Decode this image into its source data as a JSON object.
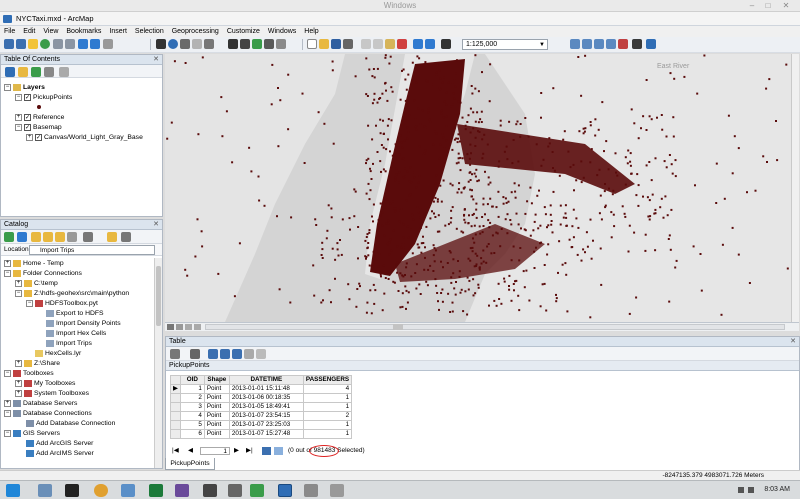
{
  "os": {
    "title": "Windows"
  },
  "app": {
    "title": "NYCTaxi.mxd - ArcMap"
  },
  "menu": [
    "File",
    "Edit",
    "View",
    "Bookmarks",
    "Insert",
    "Selection",
    "Geoprocessing",
    "Customize",
    "Windows",
    "Help"
  ],
  "toolbar": {
    "scale": "1:125,000"
  },
  "toc": {
    "title": "Table Of Contents",
    "items": [
      {
        "label": "Layers"
      },
      {
        "label": "PickupPoints"
      },
      {
        "label": "Reference"
      },
      {
        "label": "Basemap"
      },
      {
        "label": "Canvas/World_Light_Gray_Base"
      }
    ]
  },
  "catalog": {
    "title": "Catalog",
    "location_label": "Location:",
    "location_value": "Import Trips",
    "items": [
      "Home - Temp",
      "Folder Connections",
      "C:\\temp",
      "Z:\\hdfs-geohex\\src\\main\\python",
      "HDFSToolbox.pyt",
      "Export to HDFS",
      "Import Density Points",
      "Import Hex Cells",
      "Import Trips",
      "HexCells.lyr",
      "Z:\\Share",
      "Toolboxes",
      "My Toolboxes",
      "System Toolboxes",
      "Database Servers",
      "Database Connections",
      "Add Database Connection",
      "GIS Servers",
      "Add ArcGIS Server",
      "Add ArcIMS Server"
    ]
  },
  "map": {
    "label": "East River"
  },
  "table": {
    "title": "Table",
    "tab": "PickupPoints",
    "columns": [
      "OID",
      "Shape",
      "DATETIME",
      "PASSENGERS"
    ],
    "rows": [
      [
        "1",
        "Point",
        "2013-01-01 15:11:48",
        "4"
      ],
      [
        "2",
        "Point",
        "2013-01-06 00:18:35",
        "1"
      ],
      [
        "3",
        "Point",
        "2013-01-05 18:49:41",
        "1"
      ],
      [
        "4",
        "Point",
        "2013-01-07 23:54:15",
        "2"
      ],
      [
        "5",
        "Point",
        "2013-01-07 23:25:03",
        "1"
      ],
      [
        "6",
        "Point",
        "2013-01-07 15:27:48",
        "1"
      ]
    ],
    "page": "1",
    "selection_info": "(0 out of 981483 Selected)",
    "bottom_tab": "PickupPoints"
  },
  "status": {
    "coords": "-8247135.379  4983071.726 Meters"
  },
  "taskbar": {
    "time": "8:03 AM"
  },
  "colors": {
    "points": "#5a0b0b",
    "water": "#d4d4d4",
    "land": "#e6e6e6"
  }
}
